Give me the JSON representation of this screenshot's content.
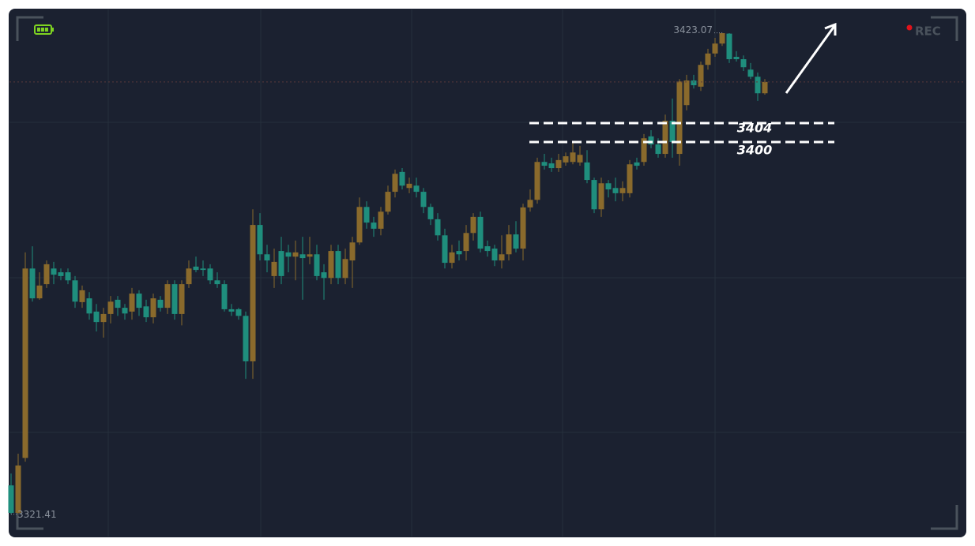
{
  "chart_data": {
    "type": "candlestick",
    "open": [
      3327.5,
      3321.7,
      3333.3,
      3373.3,
      3367,
      3370,
      3373.3,
      3372.5,
      3372.5,
      3370.8,
      3366.2,
      3367,
      3364.2,
      3362,
      3363.7,
      3366.7,
      3365,
      3364.2,
      3368,
      3365.3,
      3363,
      3366.7,
      3365,
      3370,
      3363.7,
      3370,
      3373.7,
      3373.3,
      3373.3,
      3370.8,
      3370,
      3364.7,
      3364.7,
      3363.3,
      3353.7,
      3382.5,
      3376.3,
      3371.7,
      3377,
      3376.7,
      3375.8,
      3376.3,
      3375.8,
      3376.3,
      3372.5,
      3371.3,
      3377,
      3371.3,
      3375,
      3378.8,
      3386.3,
      3383,
      3381.7,
      3385.3,
      3389.5,
      3393.7,
      3390.3,
      3390.8,
      3389.5,
      3386.3,
      3383.7,
      3380.3,
      3374.5,
      3377,
      3377,
      3380.8,
      3384.2,
      3378,
      3377.5,
      3375,
      3376.3,
      3380.5,
      3377.5,
      3386.2,
      3387.8,
      3395.8,
      3395.5,
      3394.5,
      3395.7,
      3395.8,
      3395.7,
      3395.7,
      3392,
      3385.8,
      3391.3,
      3390.3,
      3389.2,
      3389.2,
      3395.7,
      3395.8,
      3401.2,
      3399.5,
      3397.5,
      3404.5,
      3397.5,
      3407.8,
      3413,
      3411.7,
      3416.3,
      3418.7,
      3420.8,
      3422.9,
      3418,
      3417.5,
      3415.3,
      3413.8,
      3410.3
    ],
    "high": [
      3330,
      3334.2,
      3376.7,
      3378,
      3372.5,
      3375,
      3374.7,
      3373.3,
      3373.3,
      3371.7,
      3369.7,
      3368.3,
      3365.8,
      3365,
      3367.5,
      3367.5,
      3365.8,
      3369.2,
      3368.7,
      3366.7,
      3368,
      3367.5,
      3370.8,
      3370.8,
      3370.8,
      3375,
      3375.8,
      3375,
      3374.2,
      3372.5,
      3370.8,
      3365.8,
      3365,
      3364.2,
      3385.8,
      3385,
      3378.3,
      3377.5,
      3380,
      3378.3,
      3379.2,
      3380,
      3380,
      3378.3,
      3374.2,
      3378.3,
      3378.3,
      3377.5,
      3380,
      3388.3,
      3387.5,
      3384.2,
      3386.3,
      3390.8,
      3394.2,
      3394.5,
      3392.5,
      3392.5,
      3390.3,
      3387,
      3385,
      3381.7,
      3378.3,
      3379.2,
      3382.5,
      3385,
      3385.3,
      3379.2,
      3378.3,
      3380.3,
      3382.5,
      3383.3,
      3387,
      3390,
      3396.7,
      3397.5,
      3396.7,
      3397.5,
      3397.8,
      3400,
      3399.2,
      3398.3,
      3392.5,
      3392.5,
      3392,
      3392.5,
      3391.7,
      3396.2,
      3396.7,
      3401.7,
      3402.5,
      3400.8,
      3405.8,
      3409.2,
      3413.3,
      3414.2,
      3414.2,
      3417,
      3419.7,
      3422,
      3423.07,
      3423,
      3419.2,
      3418.3,
      3416.7,
      3414.7,
      3413.3
    ],
    "low": [
      3321.41,
      3321.5,
      3332.5,
      3366.3,
      3366.7,
      3369.2,
      3370,
      3370.8,
      3370,
      3365,
      3365,
      3362.5,
      3360,
      3358.7,
      3361.7,
      3363.3,
      3362.5,
      3362.5,
      3363.3,
      3362,
      3361.7,
      3364.2,
      3363.7,
      3362.5,
      3361.3,
      3369.2,
      3372.5,
      3371.7,
      3370,
      3369.2,
      3364.2,
      3363.3,
      3362.5,
      3350,
      3350,
      3375,
      3372.5,
      3369.2,
      3370,
      3372.5,
      3370.8,
      3366.7,
      3374.2,
      3370.8,
      3366.7,
      3370,
      3370,
      3370,
      3369.2,
      3378.3,
      3381.7,
      3380,
      3380.3,
      3384.7,
      3388.3,
      3390,
      3389.2,
      3388.3,
      3385,
      3382.5,
      3379.2,
      3373.3,
      3373.3,
      3375,
      3375,
      3379.2,
      3376.7,
      3375.8,
      3373.8,
      3373.3,
      3375,
      3376.7,
      3375,
      3385.3,
      3387,
      3394.2,
      3393.7,
      3393.7,
      3395,
      3395.3,
      3395,
      3391.3,
      3385,
      3384.2,
      3388.3,
      3387.5,
      3387.5,
      3388.3,
      3394.2,
      3395,
      3398.7,
      3396.7,
      3396.7,
      3396.7,
      3395,
      3406.7,
      3411.3,
      3410.8,
      3415.3,
      3418,
      3420.3,
      3416.7,
      3417,
      3415,
      3413.3,
      3408.7,
      3410
    ],
    "close": [
      3321.7,
      3331.7,
      3373.3,
      3367,
      3369.7,
      3374.2,
      3372,
      3371.7,
      3370.8,
      3366.3,
      3368.7,
      3363.8,
      3362,
      3363.7,
      3366.3,
      3365,
      3363.8,
      3368,
      3365,
      3363,
      3367,
      3365,
      3370,
      3363.7,
      3370,
      3373.3,
      3373,
      3373,
      3370.8,
      3370,
      3364.7,
      3364.2,
      3363.3,
      3353.7,
      3382.5,
      3376.3,
      3375,
      3374.7,
      3371.7,
      3375.8,
      3376.7,
      3375.5,
      3376.3,
      3371.7,
      3371.3,
      3377,
      3371.3,
      3375.3,
      3378.8,
      3386.3,
      3383,
      3381.7,
      3385.3,
      3389.5,
      3393.3,
      3390.8,
      3391.2,
      3389.5,
      3386.3,
      3383.7,
      3380.3,
      3374.5,
      3376.7,
      3376.3,
      3380.8,
      3384.2,
      3377.5,
      3377,
      3375,
      3376.3,
      3380.5,
      3377.5,
      3386.2,
      3387.8,
      3395.8,
      3395,
      3394.5,
      3396.2,
      3397,
      3397.8,
      3397.3,
      3392,
      3385.8,
      3391.3,
      3390,
      3389.2,
      3390.3,
      3395.3,
      3395,
      3400.8,
      3399.5,
      3397.5,
      3404.5,
      3400,
      3412.8,
      3413,
      3412,
      3416.3,
      3418.7,
      3420.8,
      3423,
      3417.5,
      3417.5,
      3415.8,
      3413.8,
      3410.3,
      3412.7
    ],
    "up_color": "#8a6a2c",
    "down_color": "#1f8e7d",
    "ylim": [
      3316.7,
      3428
    ],
    "max_label": 3423.07,
    "min_label": 3321.41,
    "levels": [
      3404,
      3400
    ],
    "rec_label": "REC"
  }
}
